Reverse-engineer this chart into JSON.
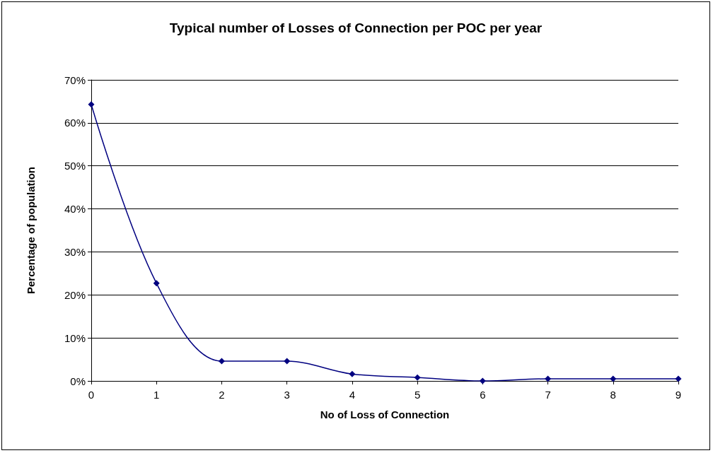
{
  "chart_data": {
    "type": "line",
    "title": "Typical number of Losses of Connection per POC per year",
    "xlabel": "No of Loss of Connection",
    "ylabel": "Percentage of population",
    "x": [
      0,
      1,
      2,
      3,
      4,
      5,
      6,
      7,
      8,
      9
    ],
    "series": [
      {
        "color": "#000080",
        "values": [
          64.3,
          22.7,
          4.6,
          4.6,
          1.6,
          0.8,
          0,
          0.5,
          0.5,
          0.5
        ]
      }
    ],
    "xlim": [
      0,
      9
    ],
    "xticks": [
      0,
      1,
      2,
      3,
      4,
      5,
      6,
      7,
      8,
      9
    ],
    "ylim": [
      0,
      70
    ],
    "yticks": [
      {
        "value": 0,
        "label": "0%"
      },
      {
        "value": 10,
        "label": "10%"
      },
      {
        "value": 20,
        "label": "20%"
      },
      {
        "value": 30,
        "label": "30%"
      },
      {
        "value": 40,
        "label": "40%"
      },
      {
        "value": 50,
        "label": "50%"
      },
      {
        "value": 60,
        "label": "60%"
      },
      {
        "value": 70,
        "label": "70%"
      }
    ],
    "grid": "y",
    "marker": "diamond",
    "line_style": "solid"
  }
}
